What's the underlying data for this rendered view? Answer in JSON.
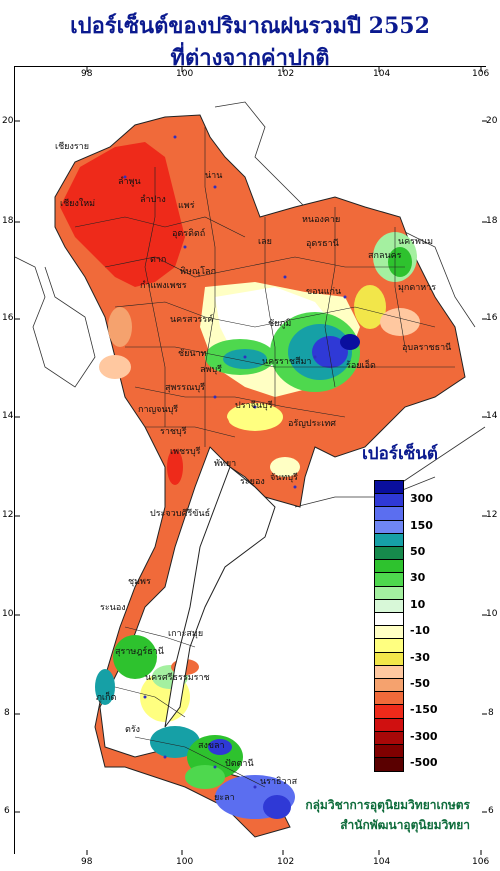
{
  "title": {
    "line1": "เปอร์เซ็นต์ของปริมาณฝนรวมปี  2552",
    "line2": "ที่ต่างจากค่าปกติ"
  },
  "axes": {
    "longitude_ticks": [
      "98",
      "100",
      "102",
      "104",
      "106"
    ],
    "latitude_ticks": [
      "20",
      "18",
      "16",
      "14",
      "12",
      "10",
      "8",
      "6"
    ]
  },
  "legend": {
    "title": "เปอร์เซ็นต์",
    "items": [
      {
        "color": "#0a0f9e",
        "label": ""
      },
      {
        "color": "#2f39d6",
        "label": "300"
      },
      {
        "color": "#5b6ef0",
        "label": ""
      },
      {
        "color": "#6f86f4",
        "label": "150"
      },
      {
        "color": "#16a0a6",
        "label": ""
      },
      {
        "color": "#168a4c",
        "label": "50"
      },
      {
        "color": "#2ec22e",
        "label": ""
      },
      {
        "color": "#4ed84e",
        "label": "30"
      },
      {
        "color": "#a4f0a0",
        "label": ""
      },
      {
        "color": "#d8f8d8",
        "label": "10"
      },
      {
        "color": "#ffffff",
        "label": ""
      },
      {
        "color": "#ffffc4",
        "label": "-10"
      },
      {
        "color": "#ffff80",
        "label": ""
      },
      {
        "color": "#f2e64a",
        "label": "-30"
      },
      {
        "color": "#ffc8a0",
        "label": ""
      },
      {
        "color": "#f5a26e",
        "label": "-50"
      },
      {
        "color": "#f06a3a",
        "label": ""
      },
      {
        "color": "#ee2a1a",
        "label": "-150"
      },
      {
        "color": "#d01010",
        "label": ""
      },
      {
        "color": "#a80808",
        "label": "-300"
      },
      {
        "color": "#800000",
        "label": ""
      },
      {
        "color": "#5a0000",
        "label": "-500"
      }
    ]
  },
  "credits": {
    "line1": "กลุ่มวิชาการอุตุนิยมวิทยาเกษตร",
    "line2": "สำนักพัฒนาอุตุนิยมวิทยา"
  },
  "places": [
    "เชียงราย",
    "เชียงใหม่",
    "ลำพูน",
    "ลำปาง",
    "น่าน",
    "แพร่",
    "อุตรดิตถ์",
    "ตาก",
    "หนองคาย",
    "อุดรธานี",
    "เลย",
    "สกลนคร",
    "นครพนม",
    "มุกดาหาร",
    "ขอนแก่น",
    "พิษณุโลก",
    "กำแพงเพชร",
    "นครสวรรค์",
    "ชัยภูมิ",
    "นครราชสีมา",
    "ร้อยเอ็ด",
    "อุบลราชธานี",
    "ชัยนาท",
    "ลพบุรี",
    "สุพรรณบุรี",
    "กาญจนบุรี",
    "ราชบุรี",
    "ปราจีนบุรี",
    "อรัญประเทศ",
    "เพชรบุรี",
    "พัทยา",
    "ระยอง",
    "จันทบุรี",
    "ประจวบคีรีขันธ์",
    "ชุมพร",
    "ระนอง",
    "เกาะสมุย",
    "สุราษฎร์ธานี",
    "ภูเก็ต",
    "นครศรีธรรมราช",
    "ตรัง",
    "สงขลา",
    "ปัตตานี",
    "นราธิวาส",
    "ยะลา"
  ]
}
